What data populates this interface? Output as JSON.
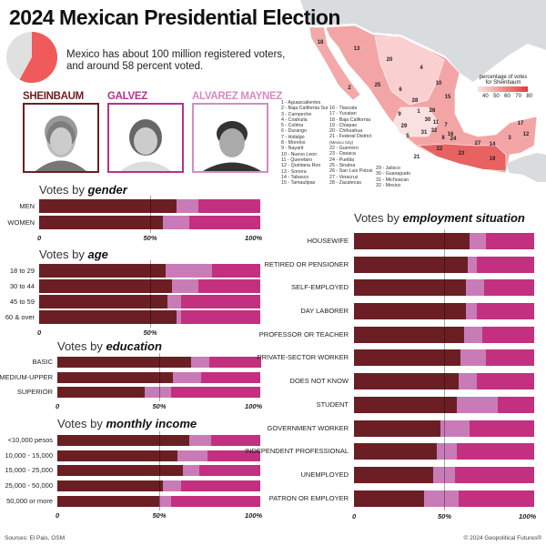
{
  "title": "2024 Mexican Presidential Election",
  "intro": {
    "text_line1": "Mexico has about 100 million registered voters,",
    "text_line2": "and around 58 percent voted.",
    "turnout_percent": 58,
    "turnout_color": "#f05a5a",
    "rest_color": "#e0e0e0"
  },
  "candidates": [
    {
      "name": "SHEINBAUM",
      "color": "#6b1f24"
    },
    {
      "name": "GALVEZ",
      "color": "#b5338a"
    },
    {
      "name": "ALVAREZ MAYNEZ",
      "color": "#d48bc4"
    }
  ],
  "map": {
    "legend_title_line1": "percentage of votes",
    "legend_title_line2": "for Sheinbaum",
    "legend_ticks": [
      "40",
      "50",
      "60",
      "70",
      "80"
    ],
    "legend_colors": [
      "#fbe3e3",
      "#e83a3a"
    ],
    "states_col1": [
      "1 - Aguascalientes",
      "2 - Baja California Sur",
      "3 - Campeche",
      "4 - Coahuila",
      "5 - Colima",
      "6 - Durango",
      "7 - Hidalgo",
      "8 - Morelos",
      "9 - Nayarit",
      "10 - Nuevo Leon",
      "11 - Queretaro",
      "12 - Quintana Roo",
      "13 - Sonora",
      "14 - Tabasco",
      "15 - Tamaulipas"
    ],
    "states_col2": [
      "16 - Tlaxcala",
      "17 - Yucatan",
      "18 - Baja California",
      "19 - Chiapas",
      "20 - Chihuahua",
      "21 - Federal District",
      "(Mexico City)",
      "22 - Guerrero",
      "23 - Oaxaca",
      "24 - Puebla",
      "25 - Sinaloa",
      "26 - San Luis Potosi",
      "27 - Veracruz",
      "28 - Zacatecas"
    ],
    "states_col3": [
      "29 - Jalisco",
      "30 - Guanajuato",
      "31 - Michoacan",
      "32 - Mexico"
    ],
    "map_numbers": [
      "18",
      "13",
      "20",
      "4",
      "10",
      "15",
      "2",
      "25",
      "6",
      "28",
      "26",
      "9",
      "1",
      "30",
      "11",
      "7",
      "29",
      "31",
      "32",
      "16",
      "8",
      "24",
      "5",
      "22",
      "23",
      "27",
      "14",
      "19",
      "3",
      "12",
      "17",
      "21"
    ]
  },
  "chart_data": [
    {
      "type": "bar",
      "stacked": true,
      "orientation": "horizontal",
      "title_prefix": "Votes by ",
      "title_em": "gender",
      "categories": [
        "MEN",
        "WOMEN"
      ],
      "series": [
        {
          "name": "SHEINBAUM",
          "color": "#6b1f24",
          "values": [
            62,
            56
          ]
        },
        {
          "name": "ALVAREZ MAYNEZ",
          "color": "#c97bb8",
          "values": [
            10,
            12
          ]
        },
        {
          "name": "GALVEZ",
          "color": "#c2307f",
          "values": [
            28,
            32
          ]
        }
      ],
      "xlim": [
        0,
        100
      ],
      "xticks": [
        "0",
        "50%",
        "100%"
      ]
    },
    {
      "type": "bar",
      "stacked": true,
      "orientation": "horizontal",
      "title_prefix": "Votes by ",
      "title_em": "age",
      "categories": [
        "18 to 29",
        "30 to 44",
        "45 to 59",
        "60 & over"
      ],
      "series": [
        {
          "name": "SHEINBAUM",
          "color": "#6b1f24",
          "values": [
            57,
            60,
            58,
            62
          ]
        },
        {
          "name": "ALVAREZ MAYNEZ",
          "color": "#c97bb8",
          "values": [
            21,
            12,
            6,
            2
          ]
        },
        {
          "name": "GALVEZ",
          "color": "#c2307f",
          "values": [
            22,
            28,
            36,
            36
          ]
        }
      ],
      "xlim": [
        0,
        100
      ],
      "xticks": [
        "0",
        "50%",
        ""
      ]
    },
    {
      "type": "bar",
      "stacked": true,
      "orientation": "horizontal",
      "title_prefix": "Votes by ",
      "title_em": "education",
      "categories": [
        "BASIC",
        "MEDIUM-UPPER",
        "SUPERIOR"
      ],
      "series": [
        {
          "name": "SHEINBAUM",
          "color": "#6b1f24",
          "values": [
            66,
            57,
            43
          ]
        },
        {
          "name": "ALVAREZ MAYNEZ",
          "color": "#c97bb8",
          "values": [
            9,
            14,
            13
          ]
        },
        {
          "name": "GALVEZ",
          "color": "#c2307f",
          "values": [
            25,
            29,
            44
          ]
        }
      ],
      "xlim": [
        0,
        100
      ],
      "xticks": [
        "0",
        "50%",
        "100%"
      ]
    },
    {
      "type": "bar",
      "stacked": true,
      "orientation": "horizontal",
      "title_prefix": "Votes by ",
      "title_em": "monthly income",
      "categories": [
        "<10,000 pesos",
        "10,000 - 15,000",
        "15,000 - 25,000",
        "25,000 - 50,000",
        "50,000 or more"
      ],
      "series": [
        {
          "name": "SHEINBAUM",
          "color": "#6b1f24",
          "values": [
            65,
            59,
            62,
            52,
            50
          ]
        },
        {
          "name": "ALVAREZ MAYNEZ",
          "color": "#c97bb8",
          "values": [
            11,
            15,
            8,
            9,
            6
          ]
        },
        {
          "name": "GALVEZ",
          "color": "#c2307f",
          "values": [
            24,
            26,
            30,
            39,
            44
          ]
        }
      ],
      "xlim": [
        0,
        100
      ],
      "xticks": [
        "0",
        "50%",
        "100%"
      ]
    },
    {
      "type": "bar",
      "stacked": true,
      "orientation": "horizontal",
      "title_prefix": "Votes by ",
      "title_em": "employment situation",
      "categories": [
        "HOUSEWIFE",
        "RETIRED OR PENSIONER",
        "SELF-EMPLOYED",
        "DAY LABORER",
        "PROFESSOR OR TEACHER",
        "PRIVATE-SECTOR WORKER",
        "DOES NOT KNOW",
        "STUDENT",
        "GOVERNMENT WORKER",
        "INDEPENDENT PROFESSIONAL",
        "UNEMPLOYED",
        "PATRON OR EMPLOYER"
      ],
      "series": [
        {
          "name": "SHEINBAUM",
          "color": "#6b1f24",
          "values": [
            64,
            63,
            62,
            62,
            61,
            59,
            58,
            57,
            48,
            46,
            44,
            39
          ]
        },
        {
          "name": "ALVAREZ MAYNEZ",
          "color": "#c97bb8",
          "values": [
            9,
            5,
            10,
            6,
            10,
            14,
            10,
            23,
            16,
            11,
            12,
            19
          ]
        },
        {
          "name": "GALVEZ",
          "color": "#c2307f",
          "values": [
            27,
            32,
            28,
            32,
            29,
            27,
            32,
            20,
            36,
            43,
            44,
            42
          ]
        }
      ],
      "xlim": [
        0,
        100
      ],
      "xticks": [
        "0",
        "50%",
        "100%"
      ]
    }
  ],
  "footer": {
    "sources": "Sources: El Pais, OSM",
    "copyright": "© 2024 Geopolitical Futures®"
  }
}
